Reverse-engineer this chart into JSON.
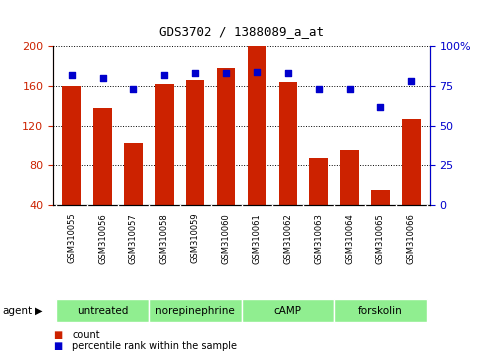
{
  "title": "GDS3702 / 1388089_a_at",
  "samples": [
    "GSM310055",
    "GSM310056",
    "GSM310057",
    "GSM310058",
    "GSM310059",
    "GSM310060",
    "GSM310061",
    "GSM310062",
    "GSM310063",
    "GSM310064",
    "GSM310065",
    "GSM310066"
  ],
  "counts": [
    160,
    138,
    103,
    162,
    166,
    178,
    200,
    164,
    88,
    96,
    55,
    127
  ],
  "percentiles": [
    82,
    80,
    73,
    82,
    83,
    83,
    84,
    83,
    73,
    73,
    62,
    78
  ],
  "agents": [
    {
      "label": "untreated",
      "start": 0,
      "end": 3
    },
    {
      "label": "norepinephrine",
      "start": 3,
      "end": 6
    },
    {
      "label": "cAMP",
      "start": 6,
      "end": 9
    },
    {
      "label": "forskolin",
      "start": 9,
      "end": 12
    }
  ],
  "ymin": 40,
  "ymax": 200,
  "yticks_left": [
    40,
    80,
    120,
    160,
    200
  ],
  "yticks_right": [
    0,
    25,
    50,
    75,
    100
  ],
  "bar_color": "#CC2200",
  "dot_color": "#0000CC",
  "agent_bg_color": "#90EE90",
  "sample_bg_color": "#CCCCCC",
  "background_color": "#FFFFFF",
  "legend_count_color": "#CC2200",
  "legend_dot_color": "#0000CC"
}
